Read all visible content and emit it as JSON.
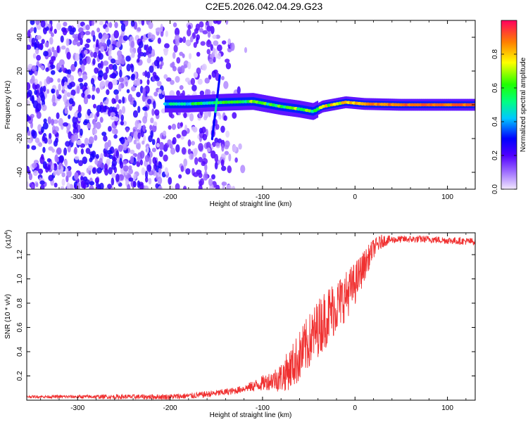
{
  "title": "C2E5.2026.042.04.29.G23",
  "chart_data": [
    {
      "type": "heatmap",
      "title": "C2E5.2026.042.04.29.G23",
      "xlabel": "Height of straight line (km)",
      "ylabel": "Frequency (Hz)",
      "xlim": [
        -355,
        130
      ],
      "ylim": [
        -50,
        50
      ],
      "xticks": [
        -300,
        -200,
        -100,
        0,
        100
      ],
      "xtick_labels": [
        "-300",
        "-200",
        "-100",
        "0",
        "100"
      ],
      "yticks": [
        -40,
        -20,
        0,
        20,
        40
      ],
      "ytick_labels": [
        "-40",
        "-20",
        "0",
        "20",
        "40"
      ],
      "colorbar": {
        "label": "Normalized spectral amplitude",
        "range": [
          0,
          1
        ],
        "ticks": [
          0.0,
          0.2,
          0.4,
          0.6,
          0.8
        ],
        "tick_labels": [
          "0.0",
          "0.2",
          "0.4",
          "0.6",
          "0.8"
        ]
      },
      "ridge": {
        "description_points": [
          {
            "x": -205,
            "y": 0.5,
            "amp": 0.45
          },
          {
            "x": -180,
            "y": 0.5,
            "amp": 0.5
          },
          {
            "x": -140,
            "y": 1.5,
            "amp": 0.55
          },
          {
            "x": -110,
            "y": 2.0,
            "amp": 0.6
          },
          {
            "x": -80,
            "y": -1.0,
            "amp": 0.6
          },
          {
            "x": -60,
            "y": -2.5,
            "amp": 0.65
          },
          {
            "x": -45,
            "y": -4.0,
            "amp": 0.6
          },
          {
            "x": -35,
            "y": -1.0,
            "amp": 0.7
          },
          {
            "x": -10,
            "y": 1.5,
            "amp": 0.75
          },
          {
            "x": 10,
            "y": 0.5,
            "amp": 0.85
          },
          {
            "x": 50,
            "y": 0.0,
            "amp": 0.9
          },
          {
            "x": 130,
            "y": 0.0,
            "amp": 0.9
          }
        ]
      }
    },
    {
      "type": "line",
      "xlabel": "Height of straight line (km)",
      "ylabel": "SNR (10 * v/v)",
      "y_multiplier": "(x10",
      "y_multiplier_exp": "4",
      "y_multiplier_close": ")",
      "xlim": [
        -355,
        130
      ],
      "ylim": [
        0,
        1.38
      ],
      "xticks": [
        -300,
        -200,
        -100,
        0,
        100
      ],
      "xtick_labels": [
        "-300",
        "-200",
        "-100",
        "0",
        "100"
      ],
      "yticks": [
        0.2,
        0.4,
        0.6,
        0.8,
        1.0,
        1.2
      ],
      "ytick_labels": [
        "0.2",
        "0.4",
        "0.6",
        "0.8",
        "1.0",
        "1.2"
      ],
      "series": [
        {
          "name": "SNR",
          "color": "#f03030",
          "x": [
            -355,
            -300,
            -250,
            -200,
            -175,
            -150,
            -130,
            -110,
            -95,
            -80,
            -70,
            -60,
            -50,
            -40,
            -30,
            -20,
            -10,
            0,
            10,
            20,
            30,
            50,
            80,
            100,
            130
          ],
          "y": [
            0.03,
            0.03,
            0.03,
            0.03,
            0.04,
            0.06,
            0.08,
            0.12,
            0.16,
            0.2,
            0.28,
            0.38,
            0.5,
            0.62,
            0.72,
            0.8,
            0.88,
            0.98,
            1.12,
            1.26,
            1.32,
            1.33,
            1.33,
            1.32,
            1.31
          ],
          "noise_envelope": [
            {
              "x": -355,
              "amp": 0.01
            },
            {
              "x": -120,
              "amp": 0.03
            },
            {
              "x": -90,
              "amp": 0.08
            },
            {
              "x": -60,
              "amp": 0.22
            },
            {
              "x": -30,
              "amp": 0.25
            },
            {
              "x": 0,
              "amp": 0.18
            },
            {
              "x": 20,
              "amp": 0.08
            },
            {
              "x": 40,
              "amp": 0.03
            },
            {
              "x": 130,
              "amp": 0.03
            }
          ]
        }
      ]
    }
  ]
}
